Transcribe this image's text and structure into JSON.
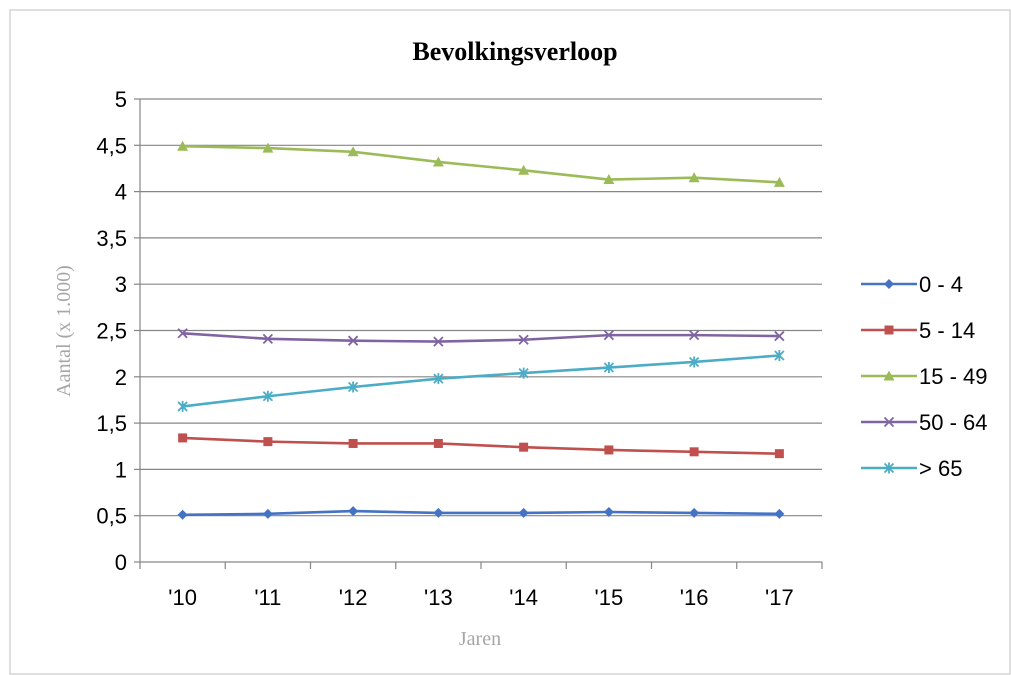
{
  "chart_data": {
    "type": "line",
    "title": "Bevolkingsverloop",
    "xlabel": "Jaren",
    "ylabel": "Aantal (x 1.000)",
    "categories": [
      "'10",
      "'11",
      "'12",
      "'13",
      "'14",
      "'15",
      "'16",
      "'17"
    ],
    "ylim": [
      0,
      5
    ],
    "yticks": [
      "0",
      "0,5",
      "1",
      "1,5",
      "2",
      "2,5",
      "3",
      "3,5",
      "4",
      "4,5",
      "5"
    ],
    "grid": true,
    "legend_position": "right",
    "series": [
      {
        "name": "0 - 4",
        "color": "#4472c4",
        "marker": "diamond",
        "values": [
          0.51,
          0.52,
          0.55,
          0.53,
          0.53,
          0.54,
          0.53,
          0.52
        ]
      },
      {
        "name": "5 - 14",
        "color": "#c0504d",
        "marker": "square",
        "values": [
          1.34,
          1.3,
          1.28,
          1.28,
          1.24,
          1.21,
          1.19,
          1.17
        ]
      },
      {
        "name": "15 - 49",
        "color": "#9bbb59",
        "marker": "triangle",
        "values": [
          4.49,
          4.47,
          4.43,
          4.32,
          4.23,
          4.13,
          4.15,
          4.1
        ]
      },
      {
        "name": "50 - 64",
        "color": "#8064a2",
        "marker": "x",
        "values": [
          2.47,
          2.41,
          2.39,
          2.38,
          2.4,
          2.45,
          2.45,
          2.44
        ]
      },
      {
        "name": "> 65",
        "color": "#4bacc6",
        "marker": "star",
        "values": [
          1.68,
          1.79,
          1.89,
          1.98,
          2.04,
          2.1,
          2.16,
          2.23
        ]
      }
    ]
  }
}
